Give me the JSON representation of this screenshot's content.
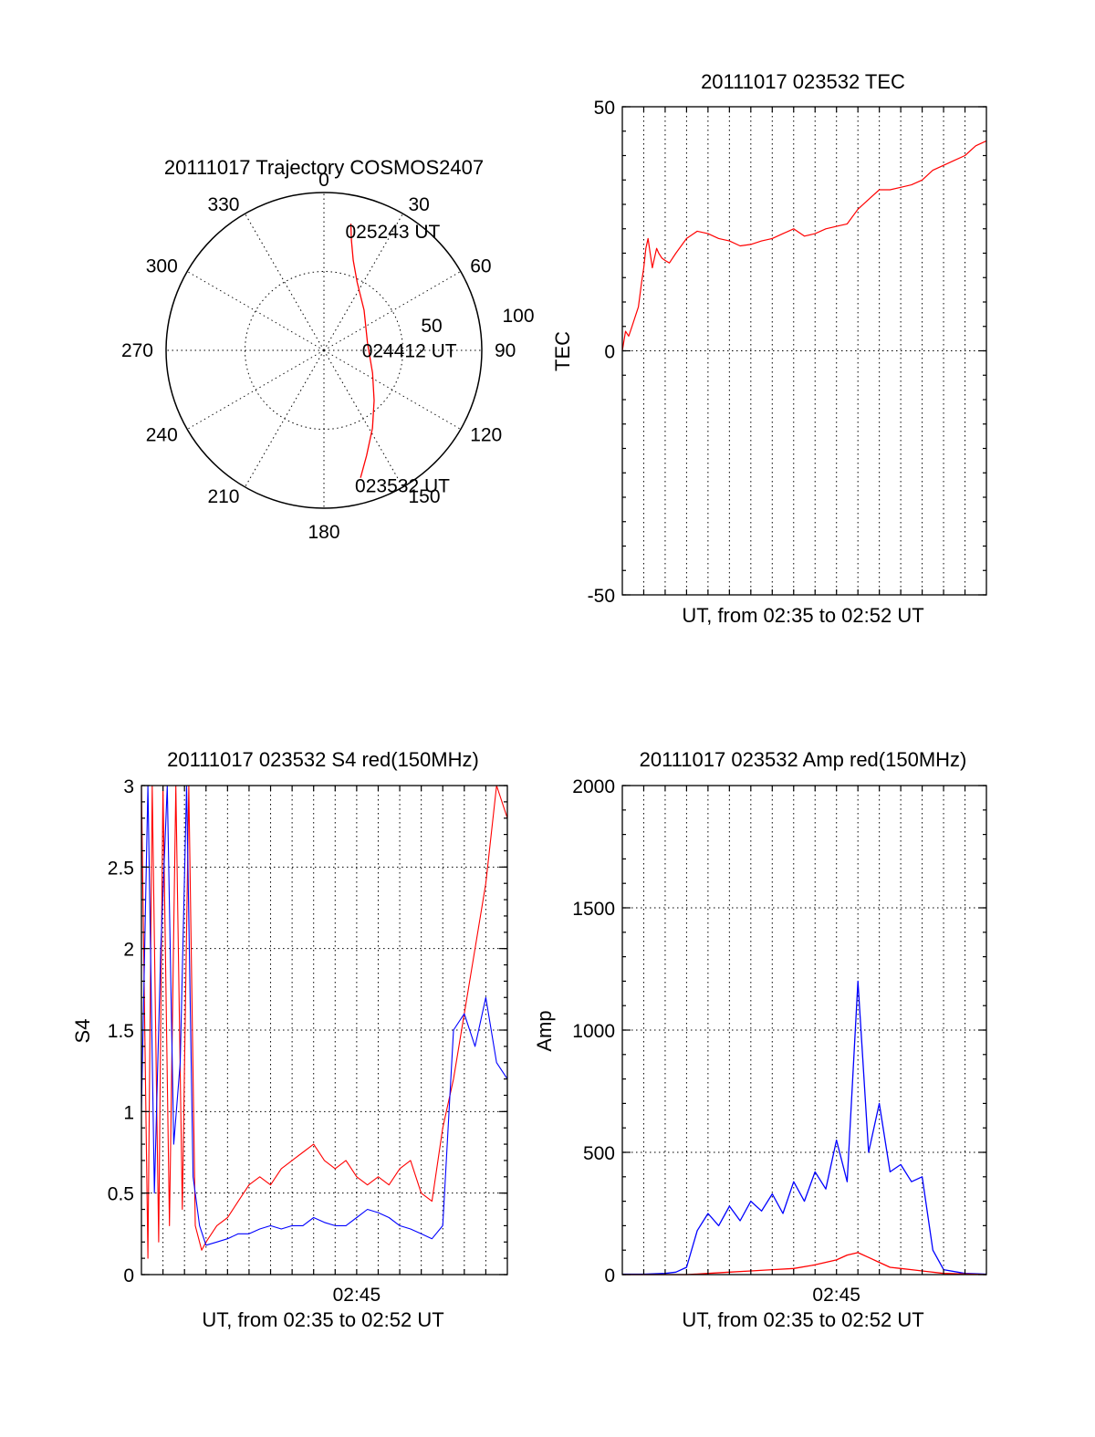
{
  "chart_data": [
    {
      "id": "trajectory",
      "type": "polar",
      "title": "20111017 Trajectory COSMOS2407",
      "angle_labels": [
        "0",
        "30",
        "60",
        "90",
        "120",
        "150",
        "180",
        "210",
        "240",
        "270",
        "300",
        "330"
      ],
      "radial_labels": [
        "50",
        "100"
      ],
      "series": [
        {
          "color": "#ff0000",
          "points": [
            {
              "az": 12,
              "zen": 82
            },
            {
              "az": 14,
              "zen": 72
            },
            {
              "az": 18,
              "zen": 60
            },
            {
              "az": 26,
              "zen": 48
            },
            {
              "az": 45,
              "zen": 36
            },
            {
              "az": 80,
              "zen": 28
            },
            {
              "az": 115,
              "zen": 34
            },
            {
              "az": 135,
              "zen": 45
            },
            {
              "az": 148,
              "zen": 58
            },
            {
              "az": 158,
              "zen": 72
            },
            {
              "az": 164,
              "zen": 84
            }
          ]
        }
      ],
      "annotations": [
        {
          "text": "025243 UT",
          "az": 12,
          "zen": 82
        },
        {
          "text": "024412 UT",
          "az": 80,
          "zen": 28
        },
        {
          "text": "023532 UT",
          "az": 164,
          "zen": 84
        }
      ]
    },
    {
      "id": "tec",
      "type": "line",
      "title": "20111017 023532 TEC",
      "xlabel": "UT, from 02:35 to 02:52 UT",
      "ylabel": "TEC",
      "ylim": [
        -50,
        50
      ],
      "yticks": [
        "50",
        "0",
        "-50"
      ],
      "grid": true,
      "x": [
        0,
        0.15,
        0.3,
        0.45,
        0.6,
        0.75,
        0.9,
        1.0,
        1.1,
        1.2,
        1.3,
        1.4,
        1.5,
        1.6,
        1.7,
        1.85,
        2.0,
        2.2,
        2.5,
        3.0,
        3.5,
        4.0,
        4.5,
        5.0,
        5.5,
        6.0,
        6.5,
        7.0,
        7.5,
        8.0,
        8.5,
        9.0,
        9.5,
        10.0,
        10.5,
        11.0,
        11.5,
        12.0,
        12.5,
        13.0,
        13.5,
        14.0,
        14.5,
        15.0,
        15.5,
        16.0,
        16.5,
        17.0
      ],
      "series": [
        {
          "color": "#ff0000",
          "values": [
            0,
            4,
            3,
            5,
            7,
            9,
            14,
            17,
            21,
            23,
            20,
            17,
            19,
            21,
            20,
            19,
            18.5,
            18,
            20,
            23,
            24.5,
            24,
            23,
            22.5,
            21.5,
            21.8,
            22.5,
            23,
            24,
            25,
            23.5,
            24,
            25,
            25.5,
            26,
            29,
            31,
            33,
            33,
            33.5,
            34,
            35,
            37,
            38,
            39,
            40,
            42,
            43
          ]
        }
      ]
    },
    {
      "id": "s4",
      "type": "line",
      "title": "20111017 023532 S4 red(150MHz)",
      "xlabel": "UT, from 02:35 to 02:52 UT",
      "ylabel": "S4",
      "ylim": [
        0,
        3
      ],
      "yticks": [
        "0",
        "0.5",
        "1",
        "1.5",
        "2",
        "2.5",
        "3"
      ],
      "xtick_label": "02:45",
      "xtick_at": 10,
      "grid": true,
      "series": [
        {
          "color": "#ff0000",
          "x": [
            0,
            0.3,
            0.5,
            0.8,
            1.0,
            1.3,
            1.6,
            1.9,
            2.2,
            2.5,
            2.8,
            3.0,
            3.5,
            4.0,
            4.5,
            5.0,
            5.5,
            6.0,
            6.5,
            7.0,
            7.5,
            8.0,
            8.5,
            9.0,
            9.5,
            10.0,
            10.5,
            11.0,
            11.5,
            12.0,
            12.5,
            13.0,
            13.5,
            14.0,
            14.5,
            15.0,
            15.5,
            16.0,
            16.5,
            17.0
          ],
          "values": [
            3.0,
            0.1,
            3.0,
            0.2,
            3.0,
            0.3,
            3.0,
            0.4,
            3.0,
            0.3,
            0.15,
            0.2,
            0.3,
            0.35,
            0.45,
            0.55,
            0.6,
            0.55,
            0.65,
            0.7,
            0.75,
            0.8,
            0.7,
            0.65,
            0.7,
            0.6,
            0.55,
            0.6,
            0.55,
            0.65,
            0.7,
            0.5,
            0.45,
            0.9,
            1.2,
            1.6,
            2.0,
            2.4,
            3.0,
            2.8
          ]
        },
        {
          "color": "#0000ff",
          "x": [
            0,
            0.3,
            0.6,
            0.9,
            1.2,
            1.5,
            1.8,
            2.1,
            2.4,
            2.7,
            3.0,
            3.5,
            4.0,
            4.5,
            5.0,
            5.5,
            6.0,
            6.5,
            7.0,
            7.5,
            8.0,
            8.5,
            9.0,
            9.5,
            10.0,
            10.5,
            11.0,
            11.5,
            12.0,
            12.5,
            13.0,
            13.5,
            14.0,
            14.5,
            15.0,
            15.5,
            16.0,
            16.5,
            17.0
          ],
          "values": [
            1.0,
            3.0,
            0.5,
            2.0,
            3.0,
            0.8,
            1.3,
            3.0,
            0.6,
            0.3,
            0.18,
            0.2,
            0.22,
            0.25,
            0.25,
            0.28,
            0.3,
            0.28,
            0.3,
            0.3,
            0.35,
            0.32,
            0.3,
            0.3,
            0.35,
            0.4,
            0.38,
            0.35,
            0.3,
            0.28,
            0.25,
            0.22,
            0.3,
            1.5,
            1.6,
            1.4,
            1.7,
            1.3,
            1.2
          ]
        }
      ]
    },
    {
      "id": "amp",
      "type": "line",
      "title": "20111017 023532 Amp red(150MHz)",
      "xlabel": "UT, from 02:35 to 02:52 UT",
      "ylabel": "Amp",
      "ylim": [
        0,
        2000
      ],
      "yticks": [
        "0",
        "500",
        "1000",
        "1500",
        "2000"
      ],
      "xtick_label": "02:45",
      "xtick_at": 10,
      "grid": true,
      "series": [
        {
          "color": "#0000ff",
          "x": [
            0,
            1,
            2,
            2.5,
            3,
            3.5,
            4,
            4.5,
            5,
            5.5,
            6,
            6.5,
            7,
            7.5,
            8,
            8.5,
            9,
            9.5,
            10,
            10.5,
            11,
            11.5,
            12,
            12.5,
            13,
            13.5,
            14,
            14.5,
            15,
            16,
            17
          ],
          "values": [
            2,
            2,
            5,
            10,
            30,
            180,
            250,
            200,
            280,
            220,
            300,
            260,
            330,
            250,
            380,
            300,
            420,
            350,
            550,
            380,
            1200,
            500,
            700,
            420,
            450,
            380,
            400,
            100,
            20,
            5,
            2
          ]
        },
        {
          "color": "#ff0000",
          "x": [
            0,
            3,
            4,
            5,
            6,
            7,
            8,
            9,
            10,
            10.5,
            11,
            11.5,
            12,
            12.5,
            13,
            13.5,
            14,
            15,
            17
          ],
          "values": [
            0,
            0,
            5,
            10,
            15,
            20,
            25,
            40,
            60,
            80,
            90,
            70,
            50,
            30,
            25,
            20,
            15,
            5,
            0
          ]
        }
      ]
    }
  ]
}
